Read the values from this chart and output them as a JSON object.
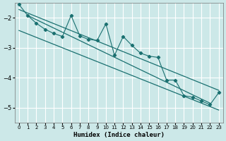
{
  "title": "",
  "xlabel": "Humidex (Indice chaleur)",
  "ylabel": "",
  "bg_color": "#cce8e8",
  "grid_color": "#ffffff",
  "line_color": "#1a7070",
  "xlim": [
    -0.5,
    23.5
  ],
  "ylim": [
    -5.5,
    -1.5
  ],
  "yticks": [
    -5,
    -4,
    -3,
    -2
  ],
  "xticks": [
    0,
    1,
    2,
    3,
    4,
    5,
    6,
    7,
    8,
    9,
    10,
    11,
    12,
    13,
    14,
    15,
    16,
    17,
    18,
    19,
    20,
    21,
    22,
    23
  ],
  "x_data": [
    0,
    1,
    2,
    3,
    4,
    5,
    6,
    7,
    8,
    9,
    10,
    11,
    12,
    13,
    14,
    15,
    16,
    17,
    18,
    19,
    20,
    21,
    22,
    23
  ],
  "series1": [
    -1.55,
    -1.92,
    -2.18,
    -2.38,
    -2.52,
    -2.62,
    -1.92,
    -2.6,
    -2.72,
    -2.75,
    -2.2,
    -3.25,
    -2.62,
    -2.92,
    -3.18,
    -3.28,
    -3.32,
    -4.08,
    -4.08,
    -4.6,
    -4.65,
    -4.78,
    -4.9,
    -4.5
  ],
  "line1_x": [
    0,
    23
  ],
  "line1_y": [
    -1.72,
    -4.42
  ],
  "line2_x": [
    0,
    23
  ],
  "line2_y": [
    -2.42,
    -5.08
  ],
  "line3_x": [
    1,
    22
  ],
  "line3_y": [
    -1.92,
    -4.85
  ]
}
